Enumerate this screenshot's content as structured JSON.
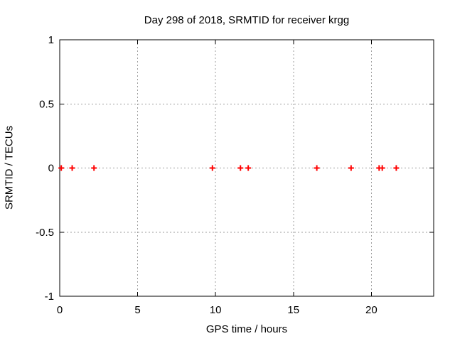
{
  "figure": {
    "background": "#ffffff",
    "text_color": "#000000"
  },
  "chart_data": {
    "type": "scatter",
    "title": "Day 298 of 2018, SRMTID for receiver krgg",
    "xlabel": "GPS time / hours",
    "ylabel": "SRMTID / TECUs",
    "xlim": [
      0,
      24
    ],
    "ylim": [
      -1,
      1
    ],
    "xticks": [
      0,
      5,
      10,
      15,
      20
    ],
    "yticks": [
      -1,
      -0.5,
      0,
      0.5,
      1
    ],
    "grid": true,
    "legend": false,
    "marker": "plus",
    "marker_color": "#ff0000",
    "grid_color": "#9e9e9e",
    "axis_color": "#000000",
    "series": [
      {
        "name": "SRMTID",
        "x": [
          0.1,
          0.8,
          2.2,
          9.8,
          11.6,
          12.1,
          16.5,
          18.7,
          20.5,
          20.7,
          21.6
        ],
        "y": [
          0,
          0,
          0,
          0,
          0,
          0,
          0,
          0,
          0,
          0,
          0
        ]
      }
    ]
  }
}
